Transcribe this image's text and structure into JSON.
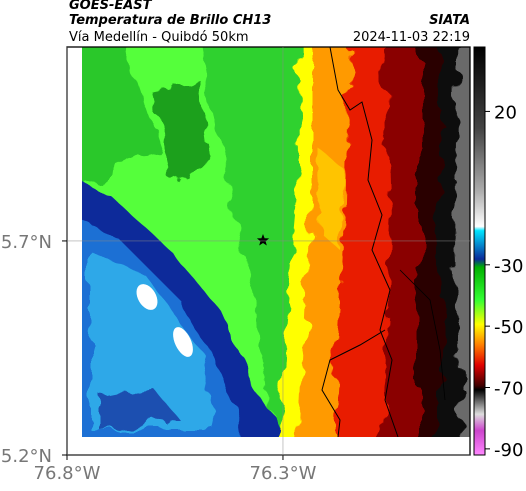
{
  "header": {
    "source": "GOES-EAST",
    "title": "Temperatura de Brillo CH13",
    "brand": "SIATA",
    "subtitle": "Vía Medellín - Quibdó 50km",
    "timestamp": "2024-11-03 22:19"
  },
  "map": {
    "xlim": [
      -76.8,
      -75.867
    ],
    "ylim": [
      5.2,
      6.153
    ],
    "xticks": [
      {
        "value": -76.8,
        "label": "76.8°W"
      },
      {
        "value": -76.3,
        "label": "76.3°W"
      }
    ],
    "yticks": [
      {
        "value": 5.7,
        "label": "5.7°N"
      },
      {
        "value": 5.2,
        "label": "5.2°N"
      }
    ]
  },
  "colorbar": {
    "range": [
      -92,
      41
    ],
    "ticks": [
      20,
      -30,
      -50,
      -70,
      -90
    ]
  }
}
